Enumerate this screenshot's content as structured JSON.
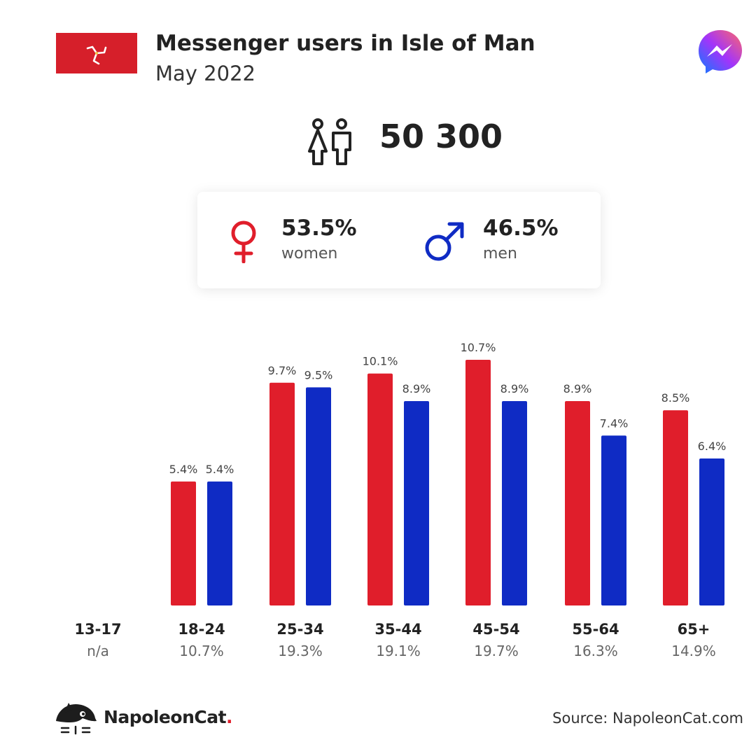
{
  "header": {
    "title": "Messenger users in Isle of Man",
    "subtitle": "May 2022",
    "flag_icon": "isle-of-man-flag-icon",
    "logo_icon": "messenger-logo-icon"
  },
  "total": {
    "icon": "people-icon",
    "value": "50 300"
  },
  "gender": {
    "female": {
      "icon": "female-symbol-icon",
      "pct": "53.5%",
      "label": "women",
      "color": "#e01e2b"
    },
    "male": {
      "icon": "male-symbol-icon",
      "pct": "46.5%",
      "label": "men",
      "color": "#0f2bc4"
    }
  },
  "chart_data": {
    "type": "bar",
    "categories": [
      "13-17",
      "18-24",
      "25-34",
      "35-44",
      "45-54",
      "55-64",
      "65+"
    ],
    "category_totals": [
      "n/a",
      "10.7%",
      "19.3%",
      "19.1%",
      "19.7%",
      "16.3%",
      "14.9%"
    ],
    "series": [
      {
        "color": "#e01e2b",
        "values": [
          null,
          5.4,
          9.7,
          10.1,
          10.7,
          8.9,
          8.5
        ],
        "labels": [
          "",
          "5.4%",
          "9.7%",
          "10.1%",
          "10.7%",
          "8.9%",
          "8.5%"
        ]
      },
      {
        "color": "#0f2bc4",
        "values": [
          null,
          5.4,
          9.5,
          8.9,
          8.9,
          7.4,
          6.4
        ],
        "labels": [
          "",
          "5.4%",
          "9.5%",
          "8.9%",
          "8.9%",
          "7.4%",
          "6.4%"
        ]
      }
    ],
    "ylim": [
      0,
      10.7
    ],
    "grid": false,
    "legend": "none"
  },
  "footer": {
    "logo_icon": "napoleoncat-logo-icon",
    "brand": "NapoleonCat",
    "brand_dot": ".",
    "source": "Source: NapoleonCat.com"
  }
}
